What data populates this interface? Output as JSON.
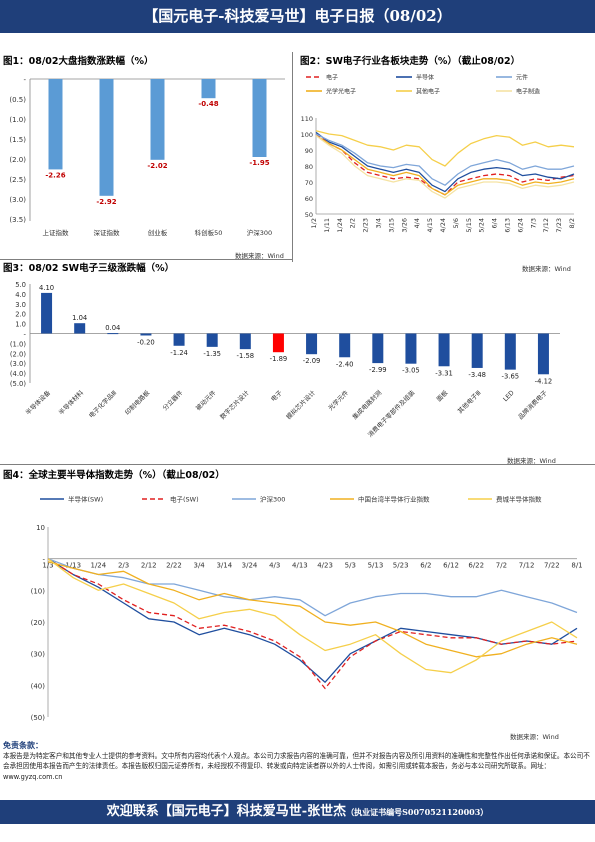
{
  "header": {
    "title": "【国元电子-科技爱马世】电子日报（08/02）"
  },
  "footer": {
    "text": "欢迎联系【国元电子】科技爱马世-张世杰",
    "cert": "（执业证书编号S0070521120003）"
  },
  "disclaimer": {
    "title": "免责条款：",
    "text": "本报告是为特定客户和其他专业人士提供的参考资料。文中所有内容均代表个人观点。本公司力求报告内容的准确可靠，但并不对报告内容及所引用资料的准确性和完整性作出任何承诺和保证。本公司不会承担因使用本报告而产生的法律责任。本报告版权归国元证券所有，未经授权不得复印、转发或向特定读者群以外的人士传阅，如需引用或转载本报告，务必与本公司研究所联系。网址：www.gyzq.com.cn"
  },
  "colors": {
    "banner": "#1f3f7a",
    "bar_blue": "#5b9bd5",
    "bar_dark": "#1f4e9e",
    "bar_red": "#ff0000"
  },
  "chart1": {
    "title": "图1：08/02大盘指数涨跌幅（%）",
    "source": "数据来源：Wind",
    "chart_data": {
      "type": "bar",
      "categories": [
        "上证指数",
        "深证指数",
        "创业板",
        "科创板50",
        "沪深300"
      ],
      "values": [
        -2.26,
        -2.92,
        -2.02,
        -0.48,
        -1.95
      ],
      "value_labels": [
        "-2.26",
        "-2.92",
        "-2.02",
        "-0.48",
        "-1.95"
      ],
      "yticks": [
        "-",
        "(0.5)",
        "(1.0)",
        "(1.5)",
        "(2.0)",
        "(2.5)",
        "(3.0)",
        "(3.5)"
      ],
      "ylim": [
        -3.5,
        0
      ]
    }
  },
  "chart2": {
    "title": "图2：SW电子行业各板块走势（%）（截止08/02）",
    "source": "数据来源：Wind",
    "chart_data": {
      "type": "line",
      "x": [
        "1/2",
        "1/11",
        "1/24",
        "2/2",
        "2/23",
        "3/4",
        "3/15",
        "3/26",
        "4/4",
        "4/15",
        "4/24",
        "5/6",
        "5/15",
        "5/24",
        "6/4",
        "6/13",
        "6/24",
        "7/3",
        "7/12",
        "7/23",
        "8/2"
      ],
      "yticks": [
        "110",
        "100",
        "90",
        "80",
        "70",
        "60",
        "50"
      ],
      "ylim": [
        50,
        110
      ],
      "series": [
        {
          "name": "电子",
          "values": [
            100,
            94,
            90,
            82,
            76,
            74,
            72,
            73,
            72,
            66,
            62,
            70,
            72,
            74,
            75,
            74,
            70,
            72,
            71,
            73,
            74
          ],
          "color": "#e02020",
          "dash": "5,3"
        },
        {
          "name": "半导体",
          "values": [
            101,
            95,
            92,
            86,
            80,
            78,
            76,
            78,
            76,
            68,
            64,
            72,
            76,
            78,
            79,
            78,
            74,
            75,
            73,
            72,
            75
          ],
          "color": "#1f4e9e",
          "dash": ""
        },
        {
          "name": "元件",
          "values": [
            100,
            96,
            93,
            88,
            82,
            80,
            79,
            81,
            80,
            72,
            68,
            75,
            80,
            82,
            84,
            82,
            78,
            80,
            78,
            78,
            80
          ],
          "color": "#7fa6d9",
          "dash": ""
        },
        {
          "name": "光学光电子",
          "values": [
            99,
            94,
            90,
            84,
            78,
            76,
            74,
            76,
            74,
            66,
            62,
            68,
            70,
            72,
            72,
            71,
            68,
            70,
            69,
            70,
            72
          ],
          "color": "#f0b020",
          "dash": ""
        },
        {
          "name": "其他电子",
          "values": [
            102,
            100,
            99,
            96,
            93,
            92,
            90,
            93,
            92,
            84,
            80,
            88,
            94,
            97,
            99,
            98,
            93,
            95,
            92,
            93,
            92
          ],
          "color": "#f5cf4a",
          "dash": ""
        },
        {
          "name": "电子制造",
          "values": [
            99,
            93,
            88,
            80,
            74,
            72,
            70,
            72,
            71,
            64,
            60,
            66,
            68,
            70,
            70,
            69,
            66,
            68,
            67,
            68,
            70
          ],
          "color": "#f5e3a3",
          "dash": ""
        }
      ]
    }
  },
  "chart3": {
    "title": "图3：08/02 SW电子三级涨跌幅（%）",
    "source": "数据来源：Wind",
    "chart_data": {
      "type": "bar",
      "categories": [
        "半导体设备",
        "半导体材料",
        "电子化学品Ⅲ",
        "印制电路板",
        "分立器件",
        "被动元件",
        "数字芯片设计",
        "电子",
        "模拟芯片设计",
        "光学元件",
        "集成电路封测",
        "消费电子零部件及组装",
        "面板",
        "其他电子Ⅲ",
        "LED",
        "品牌消费电子"
      ],
      "values": [
        4.1,
        1.04,
        0.04,
        -0.2,
        -1.24,
        -1.35,
        -1.58,
        -1.89,
        -2.09,
        -2.4,
        -2.99,
        -3.05,
        -3.31,
        -3.48,
        -3.65,
        -4.12
      ],
      "value_labels": [
        "4.10",
        "1.04",
        "0.04",
        "-0.20",
        "-1.24",
        "-1.35",
        "-1.58",
        "-1.89",
        "-2.09",
        "-2.40",
        "-2.99",
        "-3.05",
        "-3.31",
        "-3.48",
        "-3.65",
        "-4.12"
      ],
      "highlight": "电子",
      "yticks": [
        "5.0",
        "4.0",
        "3.0",
        "2.0",
        "1.0",
        "-",
        "(1.0)",
        "(2.0)",
        "(3.0)",
        "(4.0)",
        "(5.0)"
      ],
      "ylim": [
        -5,
        5
      ]
    }
  },
  "chart4": {
    "title": "图4：全球主要半导体指数走势（%）（截止08/02）",
    "source": "数据来源：Wind",
    "chart_data": {
      "type": "line",
      "x": [
        "1/3",
        "1/13",
        "1/24",
        "2/3",
        "2/12",
        "2/22",
        "3/4",
        "3/14",
        "3/24",
        "4/3",
        "4/13",
        "4/23",
        "5/3",
        "5/13",
        "5/23",
        "6/2",
        "6/12",
        "6/22",
        "7/2",
        "7/12",
        "7/22",
        "8/1"
      ],
      "yticks": [
        "10",
        "-",
        "(10)",
        "(20)",
        "(30)",
        "(40)",
        "(50)"
      ],
      "ylim": [
        -50,
        10
      ],
      "series": [
        {
          "name": "半导体(SW)",
          "values": [
            0,
            -5,
            -9,
            -14,
            -19,
            -20,
            -24,
            -22,
            -24,
            -27,
            -32,
            -39,
            -30,
            -26,
            -22,
            -23,
            -24,
            -25,
            -27,
            -26,
            -27,
            -22
          ],
          "color": "#1f4e9e",
          "dash": ""
        },
        {
          "name": "电子(SW)",
          "values": [
            0,
            -5,
            -8,
            -13,
            -17,
            -18,
            -22,
            -21,
            -23,
            -26,
            -31,
            -41,
            -31,
            -26,
            -23,
            -24,
            -25,
            -25,
            -27,
            -26,
            -27,
            -26
          ],
          "color": "#e02020",
          "dash": "5,3"
        },
        {
          "name": "沪深300",
          "values": [
            0,
            -3,
            -5,
            -6,
            -8,
            -8,
            -10,
            -12,
            -13,
            -12,
            -13,
            -18,
            -14,
            -12,
            -11,
            -11,
            -12,
            -12,
            -10,
            -12,
            -14,
            -17
          ],
          "color": "#7fa6d9",
          "dash": ""
        },
        {
          "name": "中国台湾半导体行业指数",
          "values": [
            -1,
            -3,
            -5,
            -4,
            -8,
            -10,
            -13,
            -11,
            -13,
            -14,
            -15,
            -20,
            -21,
            -20,
            -23,
            -27,
            -29,
            -31,
            -30,
            -27,
            -25,
            -27
          ],
          "color": "#f0b020",
          "dash": ""
        },
        {
          "name": "费城半导体指数",
          "values": [
            0,
            -6,
            -10,
            -8,
            -11,
            -14,
            -19,
            -17,
            -16,
            -18,
            -24,
            -29,
            -27,
            -24,
            -30,
            -35,
            -36,
            -32,
            -26,
            -23,
            -20,
            -25
          ],
          "color": "#f5cf4a",
          "dash": ""
        }
      ]
    }
  }
}
